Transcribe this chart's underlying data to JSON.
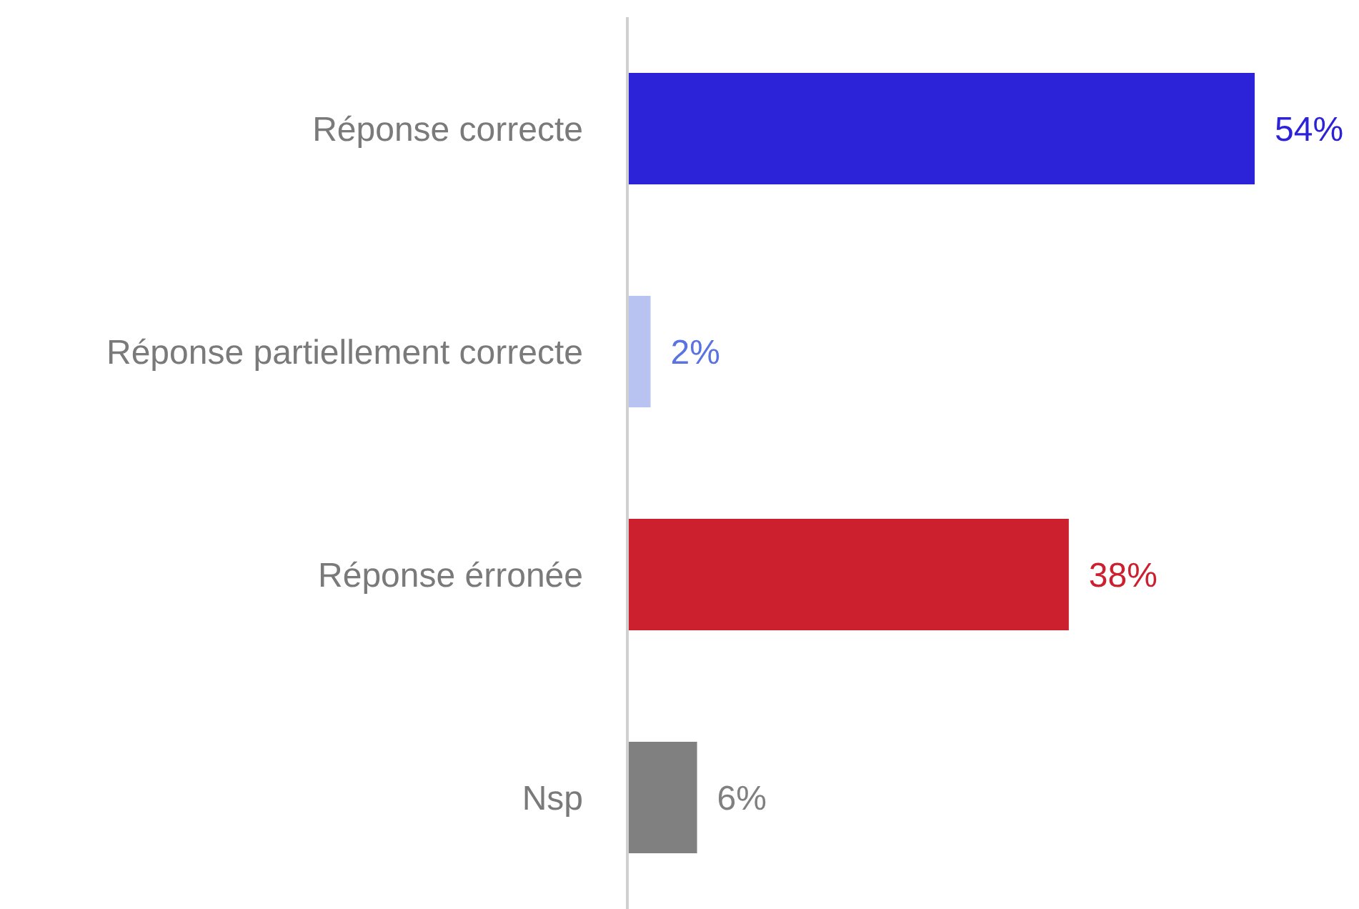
{
  "chart_data": {
    "type": "bar",
    "orientation": "horizontal",
    "categories": [
      "Réponse correcte",
      "Réponse partiellement correcte",
      "Réponse érronée",
      "Nsp"
    ],
    "values": [
      54,
      2,
      38,
      6
    ],
    "colors": [
      "#2c23d9",
      "#b9c3f2",
      "#cd202f",
      "#808080"
    ],
    "value_labels": [
      "54%",
      "2%",
      "38%",
      "6%"
    ]
  }
}
